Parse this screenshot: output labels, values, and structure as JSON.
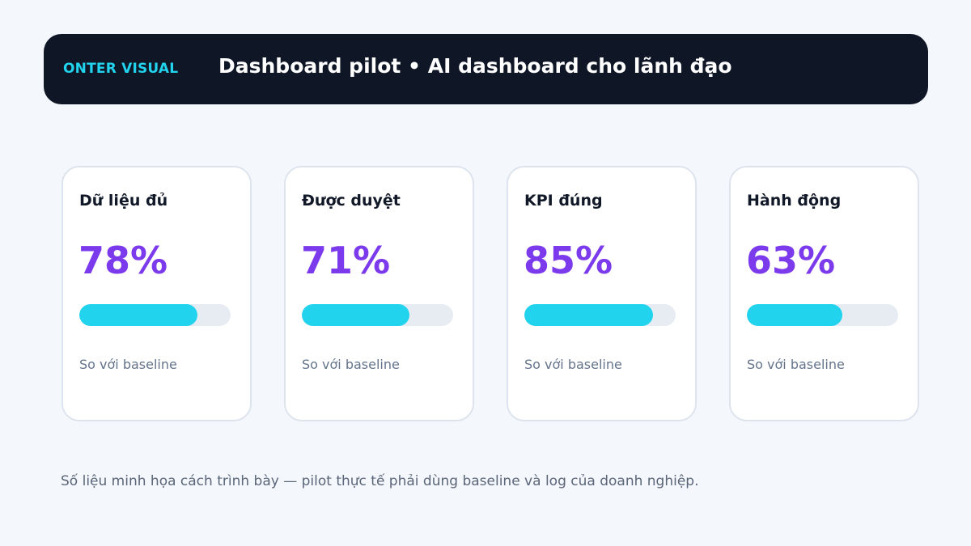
{
  "header": {
    "brand": "ONTER VISUAL",
    "title": "Dashboard pilot • AI dashboard cho lãnh đạo"
  },
  "cards": [
    {
      "label": "Dữ liệu đủ",
      "value": "78%",
      "progress": 0.78,
      "caption": "So với baseline"
    },
    {
      "label": "Được duyệt",
      "value": "71%",
      "progress": 0.71,
      "caption": "So với baseline"
    },
    {
      "label": "KPI đúng",
      "value": "85%",
      "progress": 0.85,
      "caption": "So với baseline"
    },
    {
      "label": "Hành động",
      "value": "63%",
      "progress": 0.63,
      "caption": "So với baseline"
    }
  ],
  "footnote": "Số liệu minh họa cách trình bày — pilot thực tế phải dùng baseline và log của doanh nghiệp.",
  "colors": {
    "header_bg": "#0f1727",
    "brand": "#22d3ee",
    "value": "#7c3aed",
    "bar_fill": "#22d3ee",
    "bar_track": "#e7ecf3"
  }
}
